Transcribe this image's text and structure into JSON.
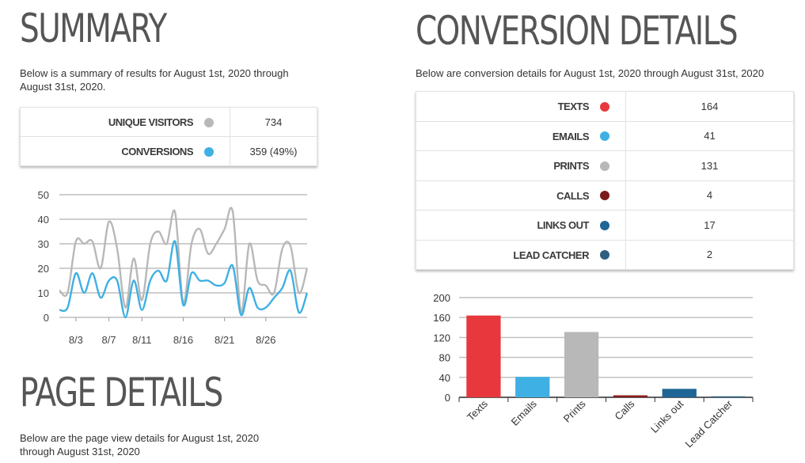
{
  "summary": {
    "title": "SUMMARY",
    "description": "Below is a summary of results for August 1st, 2020 through August 31st, 2020.",
    "rows": [
      {
        "label": "UNIQUE VISITORS",
        "value": "734",
        "color": "#b8b8b8"
      },
      {
        "label": "CONVERSIONS",
        "value": "359 (49%)",
        "color": "#3fb0e3"
      }
    ]
  },
  "conversion_details": {
    "title": "CONVERSION DETAILS",
    "description": "Below are conversion details for August 1st, 2020 through August 31st, 2020",
    "rows": [
      {
        "label": "TEXTS",
        "value": "164",
        "color": "#e8383d"
      },
      {
        "label": "EMAILS",
        "value": "41",
        "color": "#3fb0e3"
      },
      {
        "label": "PRINTS",
        "value": "131",
        "color": "#b8b8b8"
      },
      {
        "label": "CALLS",
        "value": "4",
        "color": "#7b1a1a"
      },
      {
        "label": "LINKS OUT",
        "value": "17",
        "color": "#1f6595"
      },
      {
        "label": "LEAD CATCHER",
        "value": "2",
        "color": "#2f5f7f"
      }
    ]
  },
  "page_details": {
    "title": "PAGE DETAILS",
    "description": "Below are the page view details for August 1st, 2020 through August 31st, 2020"
  },
  "chart_data": [
    {
      "type": "line",
      "x": [
        1,
        2,
        3,
        4,
        5,
        6,
        7,
        8,
        9,
        10,
        11,
        12,
        13,
        14,
        15,
        16,
        17,
        18,
        19,
        20,
        21,
        22,
        23,
        24,
        25,
        26,
        27,
        28,
        29,
        30,
        31
      ],
      "xticks": [
        3,
        7,
        11,
        16,
        21,
        26
      ],
      "xtick_labels": [
        "8/3",
        "8/7",
        "8/11",
        "8/16",
        "8/21",
        "8/26"
      ],
      "ylim": [
        0,
        50
      ],
      "yticks": [
        0,
        10,
        20,
        30,
        40,
        50
      ],
      "grid": true,
      "series": [
        {
          "color": "#b8b8b8",
          "values": [
            11,
            10,
            31,
            30,
            31,
            20,
            39,
            28,
            4,
            24,
            7,
            30,
            35,
            30,
            43,
            6,
            30,
            36,
            26,
            30,
            36,
            43,
            2,
            30,
            15,
            13,
            10,
            28,
            29,
            10,
            20
          ]
        },
        {
          "color": "#3fb0e3",
          "values": [
            3,
            4,
            18,
            10,
            18,
            8,
            15,
            15,
            0,
            15,
            3,
            15,
            19,
            15,
            31,
            5,
            18,
            15,
            15,
            13,
            14,
            21,
            1,
            12,
            4,
            4,
            8,
            12,
            19,
            2,
            10
          ]
        }
      ]
    },
    {
      "type": "bar",
      "categories": [
        "Texts",
        "Emails",
        "Prints",
        "Calls",
        "Links out",
        "Lead Catcher"
      ],
      "values": [
        164,
        41,
        131,
        4,
        17,
        2
      ],
      "colors": [
        "#e8383d",
        "#3fb0e3",
        "#b8b8b8",
        "#8b1e1e",
        "#1f6595",
        "#2f5f7f"
      ],
      "ylim": [
        0,
        200
      ],
      "yticks": [
        0,
        40,
        80,
        120,
        160,
        200
      ],
      "grid": true
    }
  ]
}
